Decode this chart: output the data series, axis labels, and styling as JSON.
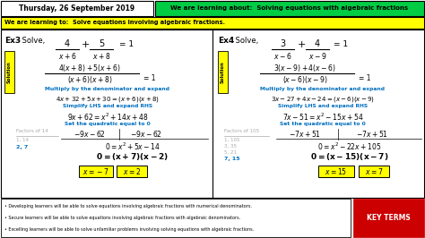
{
  "title_date": "Thursday, 26 September 2019",
  "title_learning": "We are learning about:  Solving equations with algebraic fractions",
  "learning_to": "We are learning to:  Solve equations involving algebraic fractions.",
  "bg_color": "#ffffff",
  "green_header_bg": "#00cc44",
  "yellow_bg": "#ffff00",
  "blue_text": "#0070c0",
  "gray_text": "#aaaaaa",
  "key_terms_bg": "#cc0000",
  "bullet_points": [
    "Developing learners will be able to solve equations involving algebraic fractions with numerical denominators.",
    "Secure learners will be able to solve equations involving algebraic fractions with algebraic denominators.",
    "Excelling learners will be able to solve unfamiliar problems involving solving equations with algebraic fractions."
  ]
}
